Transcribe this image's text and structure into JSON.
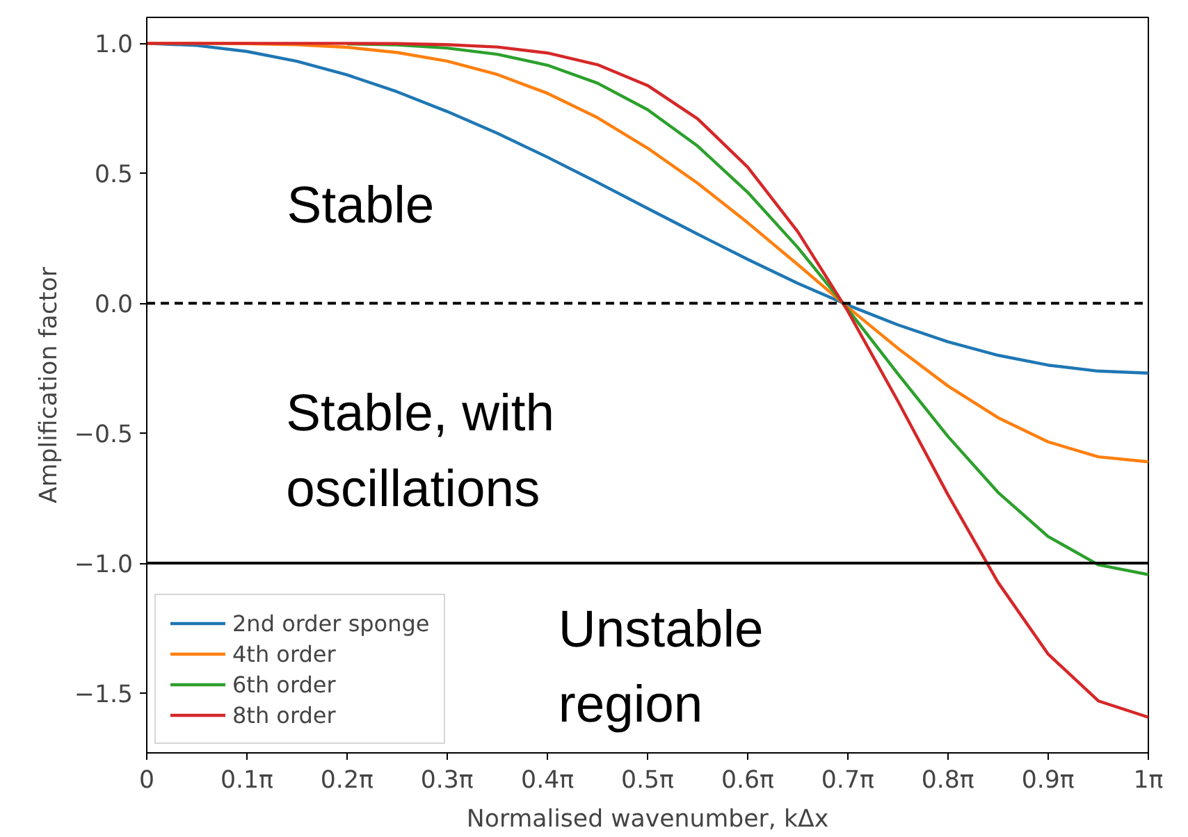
{
  "chart_data": {
    "type": "line",
    "xlabel": "Normalised wavenumber, kΔx",
    "ylabel": "Amplification factor",
    "x": [
      0,
      0.157,
      0.314,
      0.471,
      0.628,
      0.785,
      0.942,
      1.1,
      1.257,
      1.414,
      1.571,
      1.728,
      1.885,
      2.042,
      2.199,
      2.356,
      2.513,
      2.67,
      2.827,
      2.985,
      3.142
    ],
    "series": [
      {
        "name": "2nd order sponge",
        "color": "#1f77b4",
        "values": [
          1,
          0.992,
          0.969,
          0.931,
          0.879,
          0.814,
          0.738,
          0.654,
          0.562,
          0.465,
          0.365,
          0.266,
          0.169,
          0.077,
          -0.007,
          -0.083,
          -0.148,
          -0.2,
          -0.238,
          -0.261,
          -0.269
        ]
      },
      {
        "name": "4th order",
        "color": "#ff7f0e",
        "values": [
          1,
          1.0,
          0.999,
          0.995,
          0.985,
          0.965,
          0.932,
          0.88,
          0.808,
          0.714,
          0.597,
          0.462,
          0.31,
          0.149,
          -0.015,
          -0.173,
          -0.318,
          -0.44,
          -0.533,
          -0.591,
          -0.61
        ]
      },
      {
        "name": "6th order",
        "color": "#2ca02c",
        "values": [
          null,
          null,
          null,
          null,
          0.998,
          0.994,
          0.982,
          0.958,
          0.916,
          0.847,
          0.745,
          0.605,
          0.427,
          0.215,
          -0.023,
          -0.271,
          -0.512,
          -0.727,
          -0.897,
          -1.006,
          -1.044
        ]
      },
      {
        "name": "8th order",
        "color": "#d62728",
        "values": [
          1,
          1.0,
          1.0,
          1.0,
          1.0,
          0.999,
          0.995,
          0.986,
          0.963,
          0.918,
          0.838,
          0.71,
          0.524,
          0.276,
          -0.03,
          -0.376,
          -0.736,
          -1.073,
          -1.349,
          -1.53,
          -1.593
        ]
      }
    ],
    "xlim": [
      0,
      3.142
    ],
    "ylim": [
      -1.73,
      1.1
    ],
    "xticks": [
      0,
      {
        "value": 0.314,
        "label": "0.1π"
      },
      {
        "value": 0.628,
        "label": "0.2π"
      },
      {
        "value": 0.942,
        "label": "0.3π"
      },
      {
        "value": 1.257,
        "label": "0.4π"
      },
      {
        "value": 1.571,
        "label": "0.5π"
      },
      {
        "value": 1.885,
        "label": "0.6π"
      },
      {
        "value": 2.199,
        "label": "0.7π"
      },
      {
        "value": 2.513,
        "label": "0.8π"
      },
      {
        "value": 2.827,
        "label": "0.9π"
      },
      {
        "value": 3.142,
        "label": "1π"
      }
    ],
    "yticks": [
      {
        "value": 1,
        "label": "1.0"
      },
      {
        "value": 0.5,
        "label": "0.5"
      },
      {
        "value": 0,
        "label": "0.0"
      },
      {
        "value": -0.5,
        "label": "−0.5"
      },
      {
        "value": -1,
        "label": "−1.0"
      },
      {
        "value": -1.5,
        "label": "−1.5"
      }
    ],
    "ref_lines": [
      {
        "axis": "y",
        "value": 0,
        "color": "#000000",
        "line_style": "dashed"
      },
      {
        "axis": "y",
        "value": -1,
        "color": "#000000",
        "line_style": "solid"
      }
    ],
    "annotations": [
      "Stable",
      "Stable, with\noscillations",
      "Unstable\nregion"
    ],
    "legend": "bottom left",
    "grid": false,
    "marker": "none",
    "line_style": "solid"
  }
}
